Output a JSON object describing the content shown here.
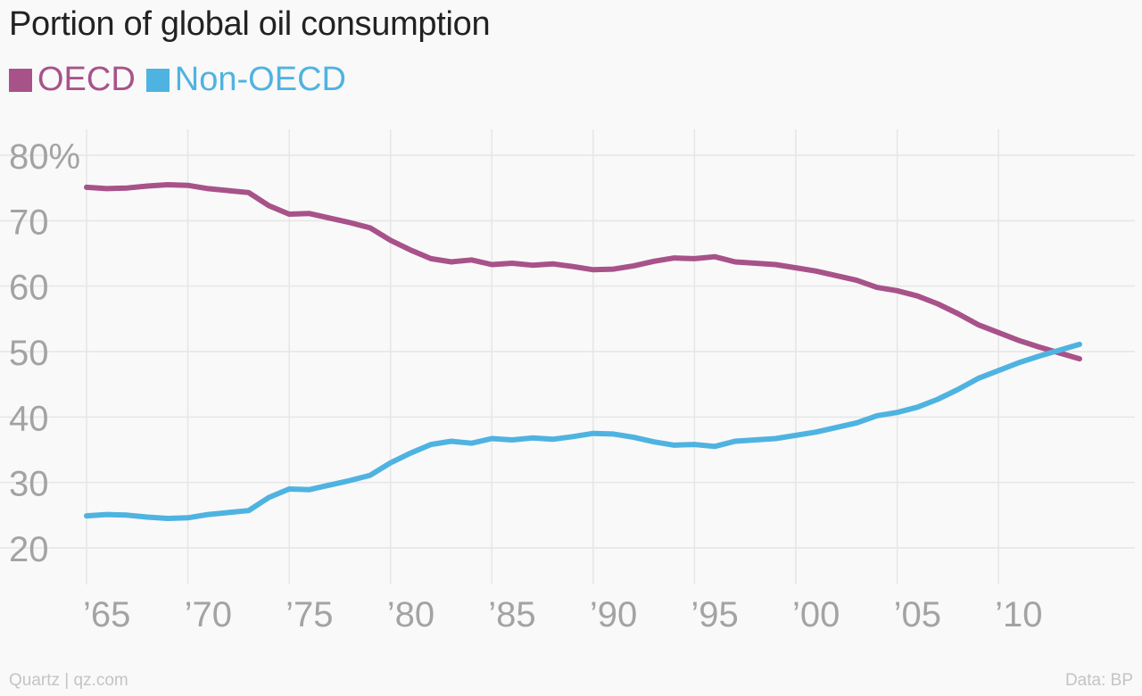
{
  "chart_data": {
    "type": "line",
    "title": "Portion of global oil consumption",
    "xlim": [
      1965,
      2014
    ],
    "ylim": [
      20,
      80
    ],
    "y_ticks": [
      20,
      30,
      40,
      50,
      60,
      70,
      80
    ],
    "y_tick_labels": [
      "20",
      "30",
      "40",
      "50",
      "60",
      "70",
      "80%"
    ],
    "x_ticks": [
      1965,
      1970,
      1975,
      1980,
      1985,
      1990,
      1995,
      2000,
      2005,
      2010
    ],
    "x_tick_labels": [
      "’65",
      "’70",
      "’75",
      "’80",
      "’85",
      "’90",
      "’95",
      "’00",
      "’05",
      "’10"
    ],
    "grid": true,
    "legend_position": "top-left",
    "x": [
      1965,
      1966,
      1967,
      1968,
      1969,
      1970,
      1971,
      1972,
      1973,
      1974,
      1975,
      1976,
      1977,
      1978,
      1979,
      1980,
      1981,
      1982,
      1983,
      1984,
      1985,
      1986,
      1987,
      1988,
      1989,
      1990,
      1991,
      1992,
      1993,
      1994,
      1995,
      1996,
      1997,
      1998,
      1999,
      2000,
      2001,
      2002,
      2003,
      2004,
      2005,
      2006,
      2007,
      2008,
      2009,
      2010,
      2011,
      2012,
      2013,
      2014
    ],
    "series": [
      {
        "name": "OECD",
        "color": "#a8528a",
        "values": [
          75.1,
          74.9,
          75.0,
          75.3,
          75.5,
          75.4,
          74.9,
          74.6,
          74.3,
          72.3,
          71.0,
          71.1,
          70.4,
          69.7,
          68.9,
          67.0,
          65.5,
          64.2,
          63.7,
          64.0,
          63.3,
          63.5,
          63.2,
          63.4,
          63.0,
          62.5,
          62.6,
          63.1,
          63.8,
          64.3,
          64.2,
          64.5,
          63.7,
          63.5,
          63.3,
          62.8,
          62.3,
          61.6,
          60.9,
          59.8,
          59.3,
          58.5,
          57.3,
          55.8,
          54.1,
          52.9,
          51.7,
          50.7,
          49.8,
          48.9
        ]
      },
      {
        "name": "Non-OECD",
        "color": "#4fb3e1",
        "values": [
          24.9,
          25.1,
          25.0,
          24.7,
          24.5,
          24.6,
          25.1,
          25.4,
          25.7,
          27.7,
          29.0,
          28.9,
          29.6,
          30.3,
          31.1,
          33.0,
          34.5,
          35.8,
          36.3,
          36.0,
          36.7,
          36.5,
          36.8,
          36.6,
          37.0,
          37.5,
          37.4,
          36.9,
          36.2,
          35.7,
          35.8,
          35.5,
          36.3,
          36.5,
          36.7,
          37.2,
          37.7,
          38.4,
          39.1,
          40.2,
          40.7,
          41.5,
          42.7,
          44.2,
          45.9,
          47.1,
          48.3,
          49.3,
          50.2,
          51.1
        ]
      }
    ]
  },
  "footer": {
    "source_left": "Quartz | qz.com",
    "source_right": "Data: BP"
  }
}
